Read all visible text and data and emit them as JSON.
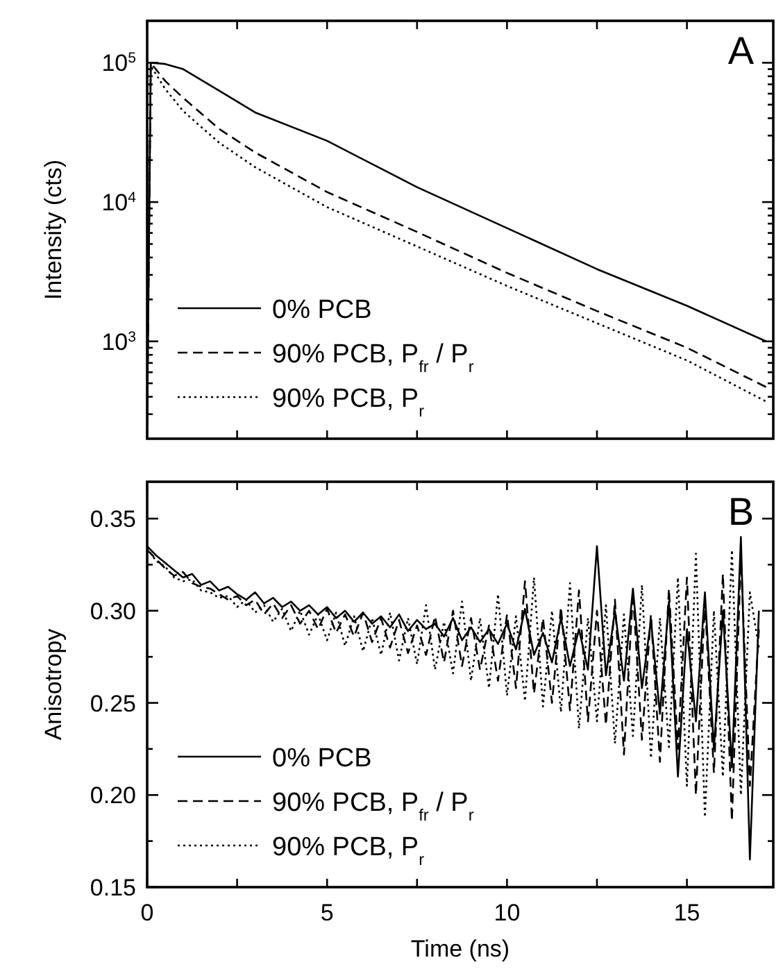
{
  "chart_data": [
    {
      "type": "line",
      "ylabel": "Intensity (cts)",
      "log": "y",
      "xlim": [
        0,
        17.4
      ],
      "ylim": [
        200,
        200000
      ],
      "xticks": [
        {
          "value": 0,
          "label": null
        },
        {
          "value": 2.5,
          "label": null
        },
        {
          "value": 5,
          "label": null
        },
        {
          "value": 7.5,
          "label": null
        },
        {
          "value": 10,
          "label": null
        },
        {
          "value": 12.5,
          "label": null
        },
        {
          "value": 15,
          "label": null
        }
      ],
      "yticks": [
        {
          "value": 300,
          "label": null
        },
        {
          "value": 400,
          "label": null
        },
        {
          "value": 500,
          "label": null
        },
        {
          "value": 600,
          "label": null
        },
        {
          "value": 700,
          "label": null
        },
        {
          "value": 800,
          "label": null
        },
        {
          "value": 900,
          "label": null
        },
        {
          "value": 1000,
          "label": "10$^{3}$"
        },
        {
          "value": 2000,
          "label": null
        },
        {
          "value": 3000,
          "label": null
        },
        {
          "value": 4000,
          "label": null
        },
        {
          "value": 5000,
          "label": null
        },
        {
          "value": 6000,
          "label": null
        },
        {
          "value": 7000,
          "label": null
        },
        {
          "value": 8000,
          "label": null
        },
        {
          "value": 9000,
          "label": null
        },
        {
          "value": 10000,
          "label": "10$^{4}$"
        },
        {
          "value": 20000,
          "label": null
        },
        {
          "value": 30000,
          "label": null
        },
        {
          "value": 40000,
          "label": null
        },
        {
          "value": 50000,
          "label": null
        },
        {
          "value": 60000,
          "label": null
        },
        {
          "value": 70000,
          "label": null
        },
        {
          "value": 80000,
          "label": null
        },
        {
          "value": 90000,
          "label": null
        },
        {
          "value": 100000,
          "label": "10$^{5}$"
        }
      ],
      "tick_labels": "y",
      "legend": "bottom left",
      "annotations": [
        "A"
      ],
      "series": [
        {
          "name": "0%  PCB",
          "color": "#000000",
          "line_style": "solid",
          "x": [
            0,
            0.1,
            0.5,
            1,
            2,
            3,
            5,
            7.5,
            10,
            12.5,
            15,
            17.2
          ],
          "values": [
            250,
            100000,
            98000,
            90000,
            63000,
            44000,
            27500,
            12800,
            6500,
            3300,
            1800,
            1000
          ]
        },
        {
          "name": "90% PCB, P$_{fr}$ / P$_{r}$",
          "color": "#000000",
          "line_style": "dashed",
          "x": [
            0,
            0.1,
            0.5,
            1,
            2,
            3,
            5,
            7.5,
            10,
            12.5,
            15,
            17.2
          ],
          "values": [
            250,
            100000,
            74000,
            56000,
            33500,
            22700,
            11800,
            6100,
            3100,
            1650,
            900,
            470
          ]
        },
        {
          "name": "90% PCB, P$_{r}$",
          "color": "#000000",
          "line_style": "dotted",
          "x": [
            0,
            0.1,
            0.5,
            1,
            2,
            3,
            5,
            7.5,
            10,
            12.5,
            15,
            17.2
          ],
          "values": [
            250,
            95000,
            65000,
            45000,
            26700,
            17800,
            9200,
            4800,
            2500,
            1350,
            730,
            370
          ]
        }
      ]
    },
    {
      "type": "line",
      "xlabel": "Time (ns)",
      "ylabel": "Anisotropy",
      "xlim": [
        0,
        17.4
      ],
      "ylim": [
        0.15,
        0.37
      ],
      "xticks": [
        0,
        {
          "value": 2.5,
          "label": null
        },
        5,
        {
          "value": 7.5,
          "label": null
        },
        10,
        {
          "value": 12.5,
          "label": null
        },
        15
      ],
      "yticks": [
        {
          "value": 0.15,
          "label": "0.15"
        },
        {
          "value": 0.175,
          "label": null
        },
        {
          "value": 0.2,
          "label": "0.20"
        },
        {
          "value": 0.225,
          "label": null
        },
        {
          "value": 0.25,
          "label": "0.25"
        },
        {
          "value": 0.275,
          "label": null
        },
        {
          "value": 0.3,
          "label": "0.30"
        },
        {
          "value": 0.325,
          "label": null
        },
        {
          "value": 0.35,
          "label": "0.35"
        }
      ],
      "legend": "bottom left",
      "annotations": [
        "B"
      ],
      "x": [
        0,
        0.25,
        0.5,
        0.75,
        1,
        1.25,
        1.5,
        1.75,
        2,
        2.25,
        2.5,
        2.75,
        3,
        3.25,
        3.5,
        3.75,
        4,
        4.25,
        4.5,
        4.75,
        5,
        5.25,
        5.5,
        5.75,
        6,
        6.25,
        6.5,
        6.75,
        7,
        7.25,
        7.5,
        7.75,
        8,
        8.25,
        8.5,
        8.75,
        9,
        9.25,
        9.5,
        9.75,
        10,
        10.25,
        10.5,
        10.75,
        11,
        11.25,
        11.5,
        11.75,
        12,
        12.25,
        12.5,
        12.75,
        13,
        13.25,
        13.5,
        13.75,
        14,
        14.25,
        14.5,
        14.75,
        15,
        15.25,
        15.5,
        15.75,
        16,
        16.25,
        16.5,
        16.75,
        17
      ],
      "series": [
        {
          "name": "0%  PCB",
          "color": "#000000",
          "line_style": "solid",
          "values": [
            0.335,
            0.33,
            0.326,
            0.322,
            0.318,
            0.32,
            0.314,
            0.316,
            0.311,
            0.313,
            0.309,
            0.306,
            0.31,
            0.304,
            0.307,
            0.302,
            0.305,
            0.3,
            0.303,
            0.298,
            0.302,
            0.296,
            0.3,
            0.294,
            0.299,
            0.293,
            0.297,
            0.291,
            0.298,
            0.289,
            0.295,
            0.29,
            0.293,
            0.286,
            0.296,
            0.284,
            0.291,
            0.283,
            0.29,
            0.282,
            0.293,
            0.279,
            0.301,
            0.276,
            0.288,
            0.272,
            0.296,
            0.27,
            0.29,
            0.268,
            0.335,
            0.265,
            0.3,
            0.262,
            0.312,
            0.258,
            0.295,
            0.244,
            0.305,
            0.21,
            0.29,
            0.24,
            0.31,
            0.225,
            0.3,
            0.215,
            0.34,
            0.165,
            0.3
          ]
        },
        {
          "name": "90% PCB, P$_{fr}$ / P$_{r}$",
          "color": "#000000",
          "line_style": "dashed",
          "values": [
            0.333,
            0.328,
            0.323,
            0.319,
            0.321,
            0.315,
            0.313,
            0.312,
            0.309,
            0.306,
            0.308,
            0.303,
            0.306,
            0.298,
            0.304,
            0.296,
            0.303,
            0.293,
            0.3,
            0.29,
            0.301,
            0.288,
            0.298,
            0.286,
            0.299,
            0.283,
            0.296,
            0.28,
            0.295,
            0.277,
            0.292,
            0.276,
            0.297,
            0.272,
            0.3,
            0.27,
            0.296,
            0.268,
            0.292,
            0.262,
            0.298,
            0.258,
            0.316,
            0.255,
            0.296,
            0.25,
            0.302,
            0.246,
            0.311,
            0.24,
            0.3,
            0.238,
            0.306,
            0.222,
            0.31,
            0.23,
            0.298,
            0.218,
            0.312,
            0.225,
            0.318,
            0.2,
            0.305,
            0.212,
            0.32,
            0.186,
            0.33,
            0.205,
            0.29
          ]
        },
        {
          "name": "90% PCB, P$_{r}$",
          "color": "#000000",
          "line_style": "dotted",
          "values": [
            0.334,
            0.327,
            0.324,
            0.318,
            0.316,
            0.317,
            0.311,
            0.31,
            0.307,
            0.308,
            0.302,
            0.306,
            0.299,
            0.303,
            0.294,
            0.301,
            0.289,
            0.3,
            0.287,
            0.298,
            0.284,
            0.299,
            0.281,
            0.297,
            0.278,
            0.296,
            0.276,
            0.299,
            0.273,
            0.296,
            0.271,
            0.303,
            0.268,
            0.294,
            0.266,
            0.305,
            0.262,
            0.296,
            0.258,
            0.309,
            0.254,
            0.297,
            0.251,
            0.318,
            0.248,
            0.3,
            0.245,
            0.315,
            0.236,
            0.296,
            0.24,
            0.303,
            0.228,
            0.298,
            0.232,
            0.314,
            0.22,
            0.296,
            0.226,
            0.318,
            0.205,
            0.331,
            0.188,
            0.3,
            0.21,
            0.333,
            0.2,
            0.31,
            0.28
          ]
        }
      ]
    }
  ]
}
